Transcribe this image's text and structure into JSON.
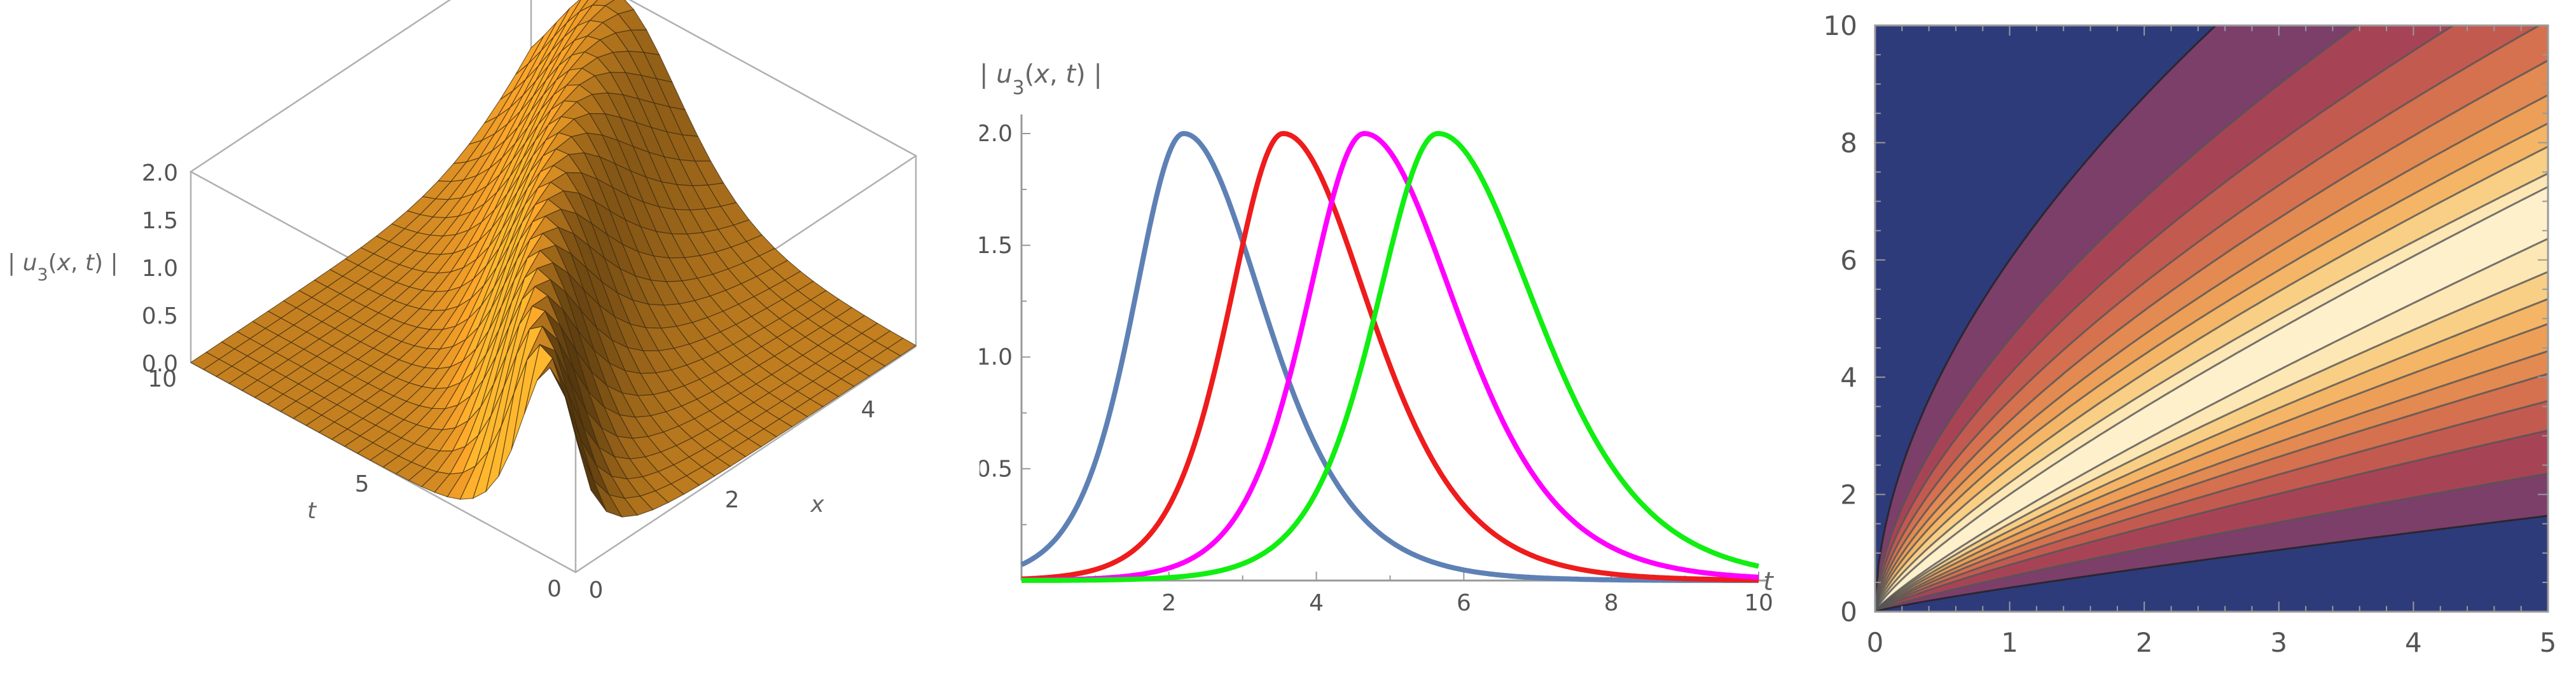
{
  "chart_data": [
    {
      "type": "surface3d",
      "zlabel": "| u3(x, t) |",
      "xlabel": "x",
      "ylabel": "t",
      "x_ticks": [
        "0",
        "2",
        "4"
      ],
      "t_ticks": [
        "10",
        "5",
        "0"
      ],
      "z_ticks": [
        "0.0",
        "0.5",
        "1.0",
        "1.5",
        "2.0"
      ],
      "zlim": [
        0,
        2.0
      ],
      "xlim": [
        0,
        5
      ],
      "tlim": [
        0,
        10
      ],
      "colors": {
        "surface": "#f5a020",
        "mesh": "#3a2a10",
        "box": "#b0b0b0"
      }
    },
    {
      "type": "line",
      "ylabel": "| u3(x, t) |",
      "xlabel": "t",
      "xlim": [
        0,
        10
      ],
      "ylim": [
        0,
        2.0
      ],
      "x_ticks": [
        "2",
        "4",
        "6",
        "8",
        "10"
      ],
      "y_ticks": [
        "0.5",
        "1.0",
        "1.5",
        "2.0"
      ],
      "series": [
        {
          "color": "#5e81b5",
          "peak_t": 2.2
        },
        {
          "color": "#ee1c1c",
          "peak_t": 3.55
        },
        {
          "color": "#ff00ff",
          "peak_t": 4.65
        },
        {
          "color": "#11ee11",
          "peak_t": 5.65
        }
      ]
    },
    {
      "type": "contour",
      "xlim": [
        0,
        5
      ],
      "ylim": [
        0,
        10
      ],
      "x_ticks": [
        "0",
        "1",
        "2",
        "3",
        "4",
        "5"
      ],
      "y_ticks": [
        "0",
        "2",
        "4",
        "6",
        "8",
        "10"
      ],
      "colors": {
        "background": "#2e3b7a",
        "bands": [
          "#7c3f6a",
          "#a64456",
          "#c35a50",
          "#d5714e",
          "#e28a52",
          "#ed9f58",
          "#f4b566",
          "#f9cf86",
          "#fde7b4",
          "#fff0cc"
        ],
        "lines": "#555555"
      }
    }
  ]
}
